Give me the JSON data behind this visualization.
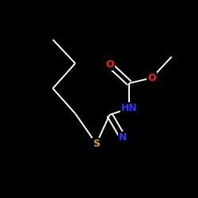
{
  "background_color": "#000000",
  "bond_color": "#ffffff",
  "atom_colors": {
    "O": "#ff2200",
    "N": "#3333ff",
    "S": "#ccaa00",
    "C": "#ffffff"
  },
  "figsize": [
    2.5,
    2.5
  ],
  "dpi": 100,
  "lw": 1.4,
  "fontsize": 8.5
}
